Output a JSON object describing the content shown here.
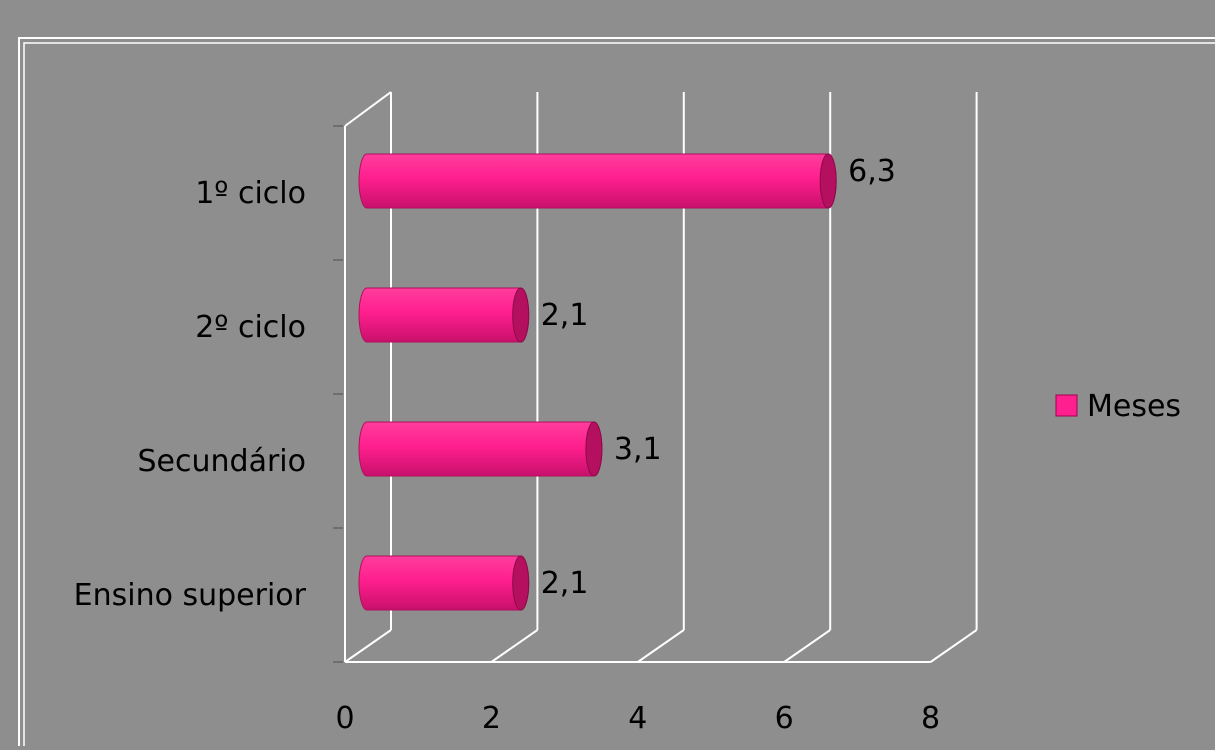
{
  "chart_data": {
    "type": "bar",
    "orientation": "horizontal",
    "style": "3d-cylinder",
    "categories": [
      "1º ciclo",
      "2º ciclo",
      "Secundário",
      "Ensino superior"
    ],
    "series": [
      {
        "name": "Meses",
        "values": [
          6.3,
          2.1,
          3.1,
          2.1
        ],
        "color": "#ff1f8e"
      }
    ],
    "data_labels": [
      "6,3",
      "2,1",
      "3,1",
      "2,1"
    ],
    "x_ticks": [
      "0",
      "2",
      "4",
      "6",
      "8"
    ],
    "xlim": [
      0,
      8
    ],
    "grid": true,
    "legend_position": "right",
    "background_color": "#8e8e8e",
    "gridline_color": "#ffffff"
  }
}
